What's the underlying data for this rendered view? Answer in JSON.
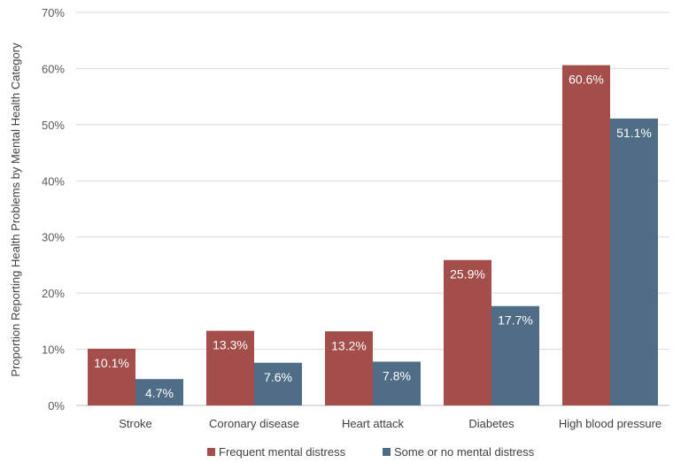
{
  "chart_data": {
    "type": "bar",
    "title": "",
    "xlabel": "",
    "ylabel": "Proportion Reporting Health Problems by Mental Health Category",
    "ylim": [
      0,
      70
    ],
    "yticks": [
      0,
      10,
      20,
      30,
      40,
      50,
      60,
      70
    ],
    "ytick_format": "%",
    "grid": "horizontal",
    "legend_position": "bottom",
    "categories": [
      "Stroke",
      "Coronary disease",
      "Heart attack",
      "Diabetes",
      "High blood pressure"
    ],
    "series": [
      {
        "name": "Frequent mental distress",
        "color": "#a34e4a",
        "values": [
          10.1,
          13.3,
          13.2,
          25.9,
          60.6
        ],
        "labels": [
          "10.1%",
          "13.3%",
          "13.2%",
          "25.9%",
          "60.6%"
        ]
      },
      {
        "name": "Some or no mental distress",
        "color": "#4f6d87",
        "values": [
          4.7,
          7.6,
          7.8,
          17.7,
          51.1
        ],
        "labels": [
          "4.7%",
          "7.6%",
          "7.8%",
          "17.7%",
          "51.1%"
        ]
      }
    ]
  }
}
